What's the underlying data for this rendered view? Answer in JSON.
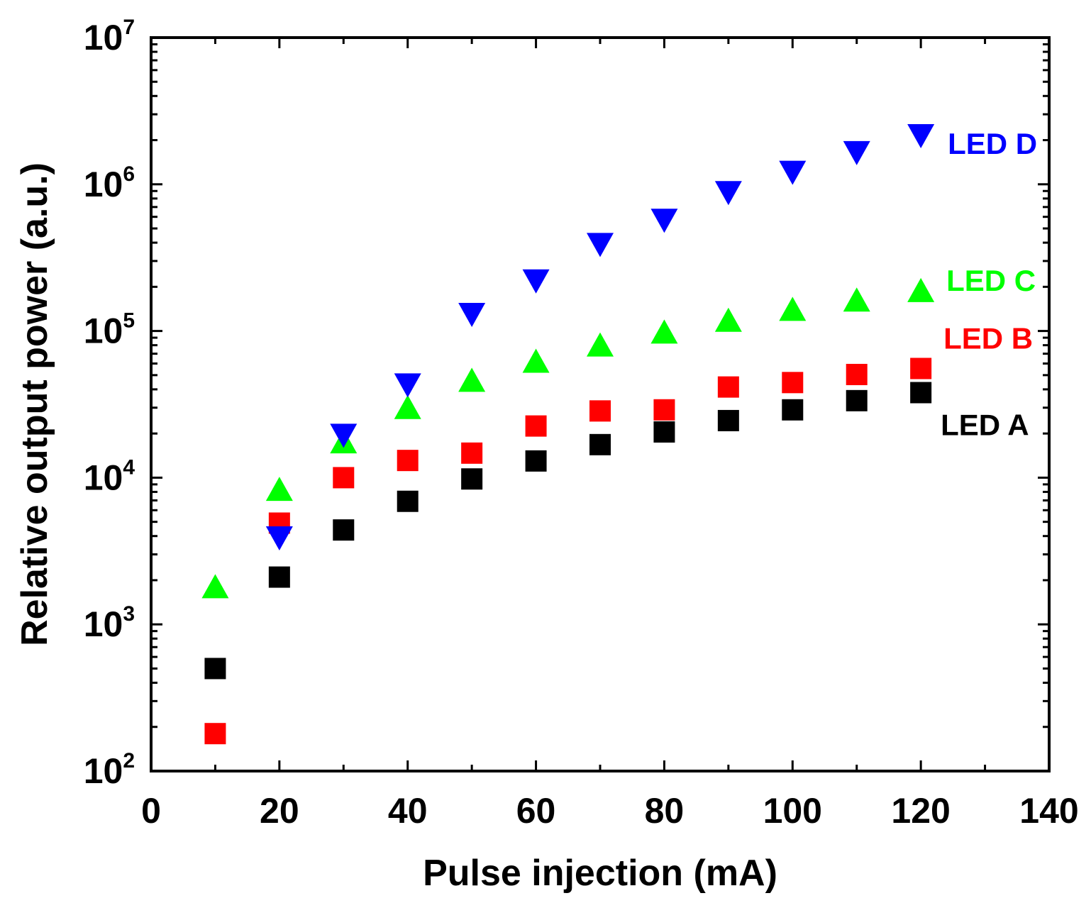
{
  "chart_data": {
    "type": "scatter",
    "title": "",
    "xlabel": "Pulse injection (mA)",
    "ylabel": "Relative output power (a.u.)",
    "xlim": [
      0,
      140
    ],
    "ylim": [
      100,
      10000000
    ],
    "yscale": "log",
    "grid": false,
    "x_ticks": [
      0,
      20,
      40,
      60,
      80,
      100,
      120,
      140
    ],
    "x_tick_labels": [
      "0",
      "20",
      "40",
      "60",
      "80",
      "100",
      "120",
      "140"
    ],
    "y_ticks": [
      100,
      1000,
      10000,
      100000,
      1000000,
      10000000
    ],
    "y_tick_labels": [
      {
        "base": "10",
        "exp": "2"
      },
      {
        "base": "10",
        "exp": "3"
      },
      {
        "base": "10",
        "exp": "4"
      },
      {
        "base": "10",
        "exp": "5"
      },
      {
        "base": "10",
        "exp": "6"
      },
      {
        "base": "10",
        "exp": "7"
      }
    ],
    "series": [
      {
        "name": "LED A",
        "label": "LED A",
        "marker": "square",
        "color": "#000000",
        "x": [
          10,
          20,
          30,
          40,
          50,
          60,
          70,
          80,
          90,
          100,
          110,
          120
        ],
        "y": [
          500,
          2100,
          4400,
          6900,
          9800,
          13000,
          16800,
          20500,
          24500,
          29000,
          33500,
          38000
        ]
      },
      {
        "name": "LED B",
        "label": "LED B",
        "marker": "square",
        "color": "#ff0000",
        "x": [
          10,
          20,
          30,
          40,
          50,
          60,
          70,
          80,
          90,
          100,
          110,
          120
        ],
        "y": [
          180,
          4900,
          10000,
          13100,
          14700,
          22500,
          28500,
          29000,
          41500,
          44500,
          50500,
          55500
        ]
      },
      {
        "name": "LED C",
        "label": "LED C",
        "marker": "triangle-up",
        "color": "#00ff00",
        "x": [
          10,
          20,
          30,
          40,
          50,
          60,
          70,
          80,
          90,
          100,
          110,
          120
        ],
        "y": [
          1800,
          8300,
          17500,
          30000,
          46000,
          62000,
          80000,
          98000,
          118000,
          140000,
          162000,
          188000
        ]
      },
      {
        "name": "LED D",
        "label": "LED D",
        "marker": "triangle-down",
        "color": "#0000ff",
        "x": [
          20,
          30,
          40,
          50,
          60,
          70,
          80,
          90,
          100,
          110,
          120
        ],
        "y": [
          3900,
          19500,
          43000,
          130000,
          220000,
          390000,
          570000,
          880000,
          1210000,
          1650000,
          2150000
        ]
      }
    ]
  }
}
